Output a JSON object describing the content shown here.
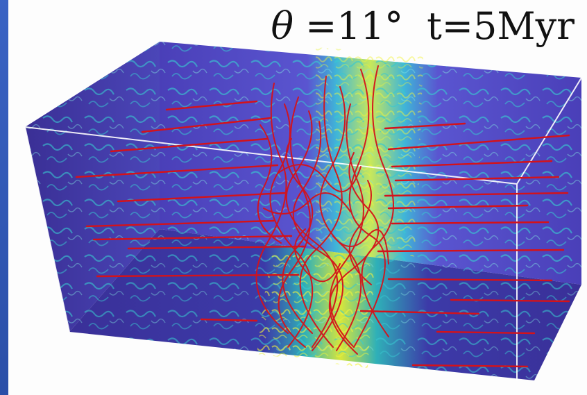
{
  "annotation": {
    "theta_symbol": "θ",
    "angle_text": " =11°",
    "time_text": "t=5Myr"
  },
  "colors": {
    "background_blue": "#2a4fa8",
    "field_lines": "#d4121a",
    "density_low": "#3b2a9a",
    "density_mid": "#2ec4c8",
    "density_high": "#f0f032"
  }
}
